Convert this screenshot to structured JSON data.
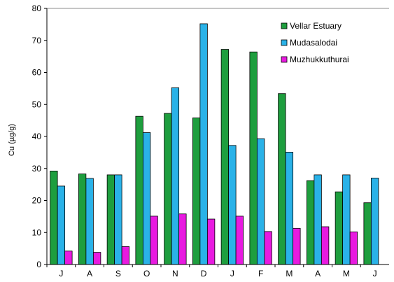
{
  "chart_data": {
    "type": "bar",
    "title": "",
    "xlabel": "",
    "ylabel": "Cu (µg/g)",
    "ylim": [
      0,
      80
    ],
    "yticks": [
      0,
      10,
      20,
      30,
      40,
      50,
      60,
      70,
      80
    ],
    "grid": false,
    "legend_position": "top-right",
    "categories": [
      "J",
      "A",
      "S",
      "O",
      "N",
      "D",
      "J",
      "F",
      "M",
      "A",
      "M",
      "J"
    ],
    "series": [
      {
        "name": "Vellar Estuary",
        "color": "#1e9e3e",
        "values": [
          29.2,
          28.3,
          28.0,
          46.3,
          47.2,
          45.8,
          67.2,
          66.4,
          53.4,
          26.2,
          22.7,
          19.3
        ]
      },
      {
        "name": "Mudasalodai",
        "color": "#2ab2e8",
        "values": [
          24.5,
          26.9,
          28.0,
          41.2,
          55.2,
          75.2,
          37.2,
          39.3,
          35.1,
          28.0,
          28.0,
          27.0
        ]
      },
      {
        "name": "Muzhukkuthurai",
        "color": "#e81ae0",
        "values": [
          4.2,
          3.8,
          5.6,
          15.1,
          15.8,
          14.2,
          15.1,
          10.3,
          11.3,
          11.8,
          10.2,
          null
        ]
      }
    ]
  }
}
